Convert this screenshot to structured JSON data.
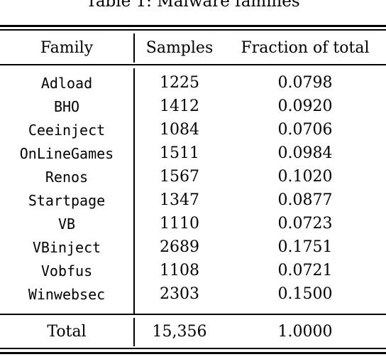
{
  "caption": "Table 1: Malware families",
  "headers": [
    "Family",
    "Samples",
    "Fraction of total"
  ],
  "rows": [
    {
      "family": "Adload",
      "samples": "1225",
      "fraction": "0.0798"
    },
    {
      "family": "BHO",
      "samples": "1412",
      "fraction": "0.0920"
    },
    {
      "family": "Ceeinject",
      "samples": "1084",
      "fraction": "0.0706"
    },
    {
      "family": "OnLineGames",
      "samples": "1511",
      "fraction": "0.0984"
    },
    {
      "family": "Renos",
      "samples": "1567",
      "fraction": "0.1020"
    },
    {
      "family": "Startpage",
      "samples": "1347",
      "fraction": "0.0877"
    },
    {
      "family": "VB",
      "samples": "1110",
      "fraction": "0.0723"
    },
    {
      "family": "VBinject",
      "samples": "2689",
      "fraction": "0.1751"
    },
    {
      "family": "Vobfus",
      "samples": "1108",
      "fraction": "0.0721"
    },
    {
      "family": "Winwebsec",
      "samples": "2303",
      "fraction": "0.1500"
    }
  ],
  "total": {
    "label": "Total",
    "samples": "15,356",
    "fraction": "1.0000"
  }
}
